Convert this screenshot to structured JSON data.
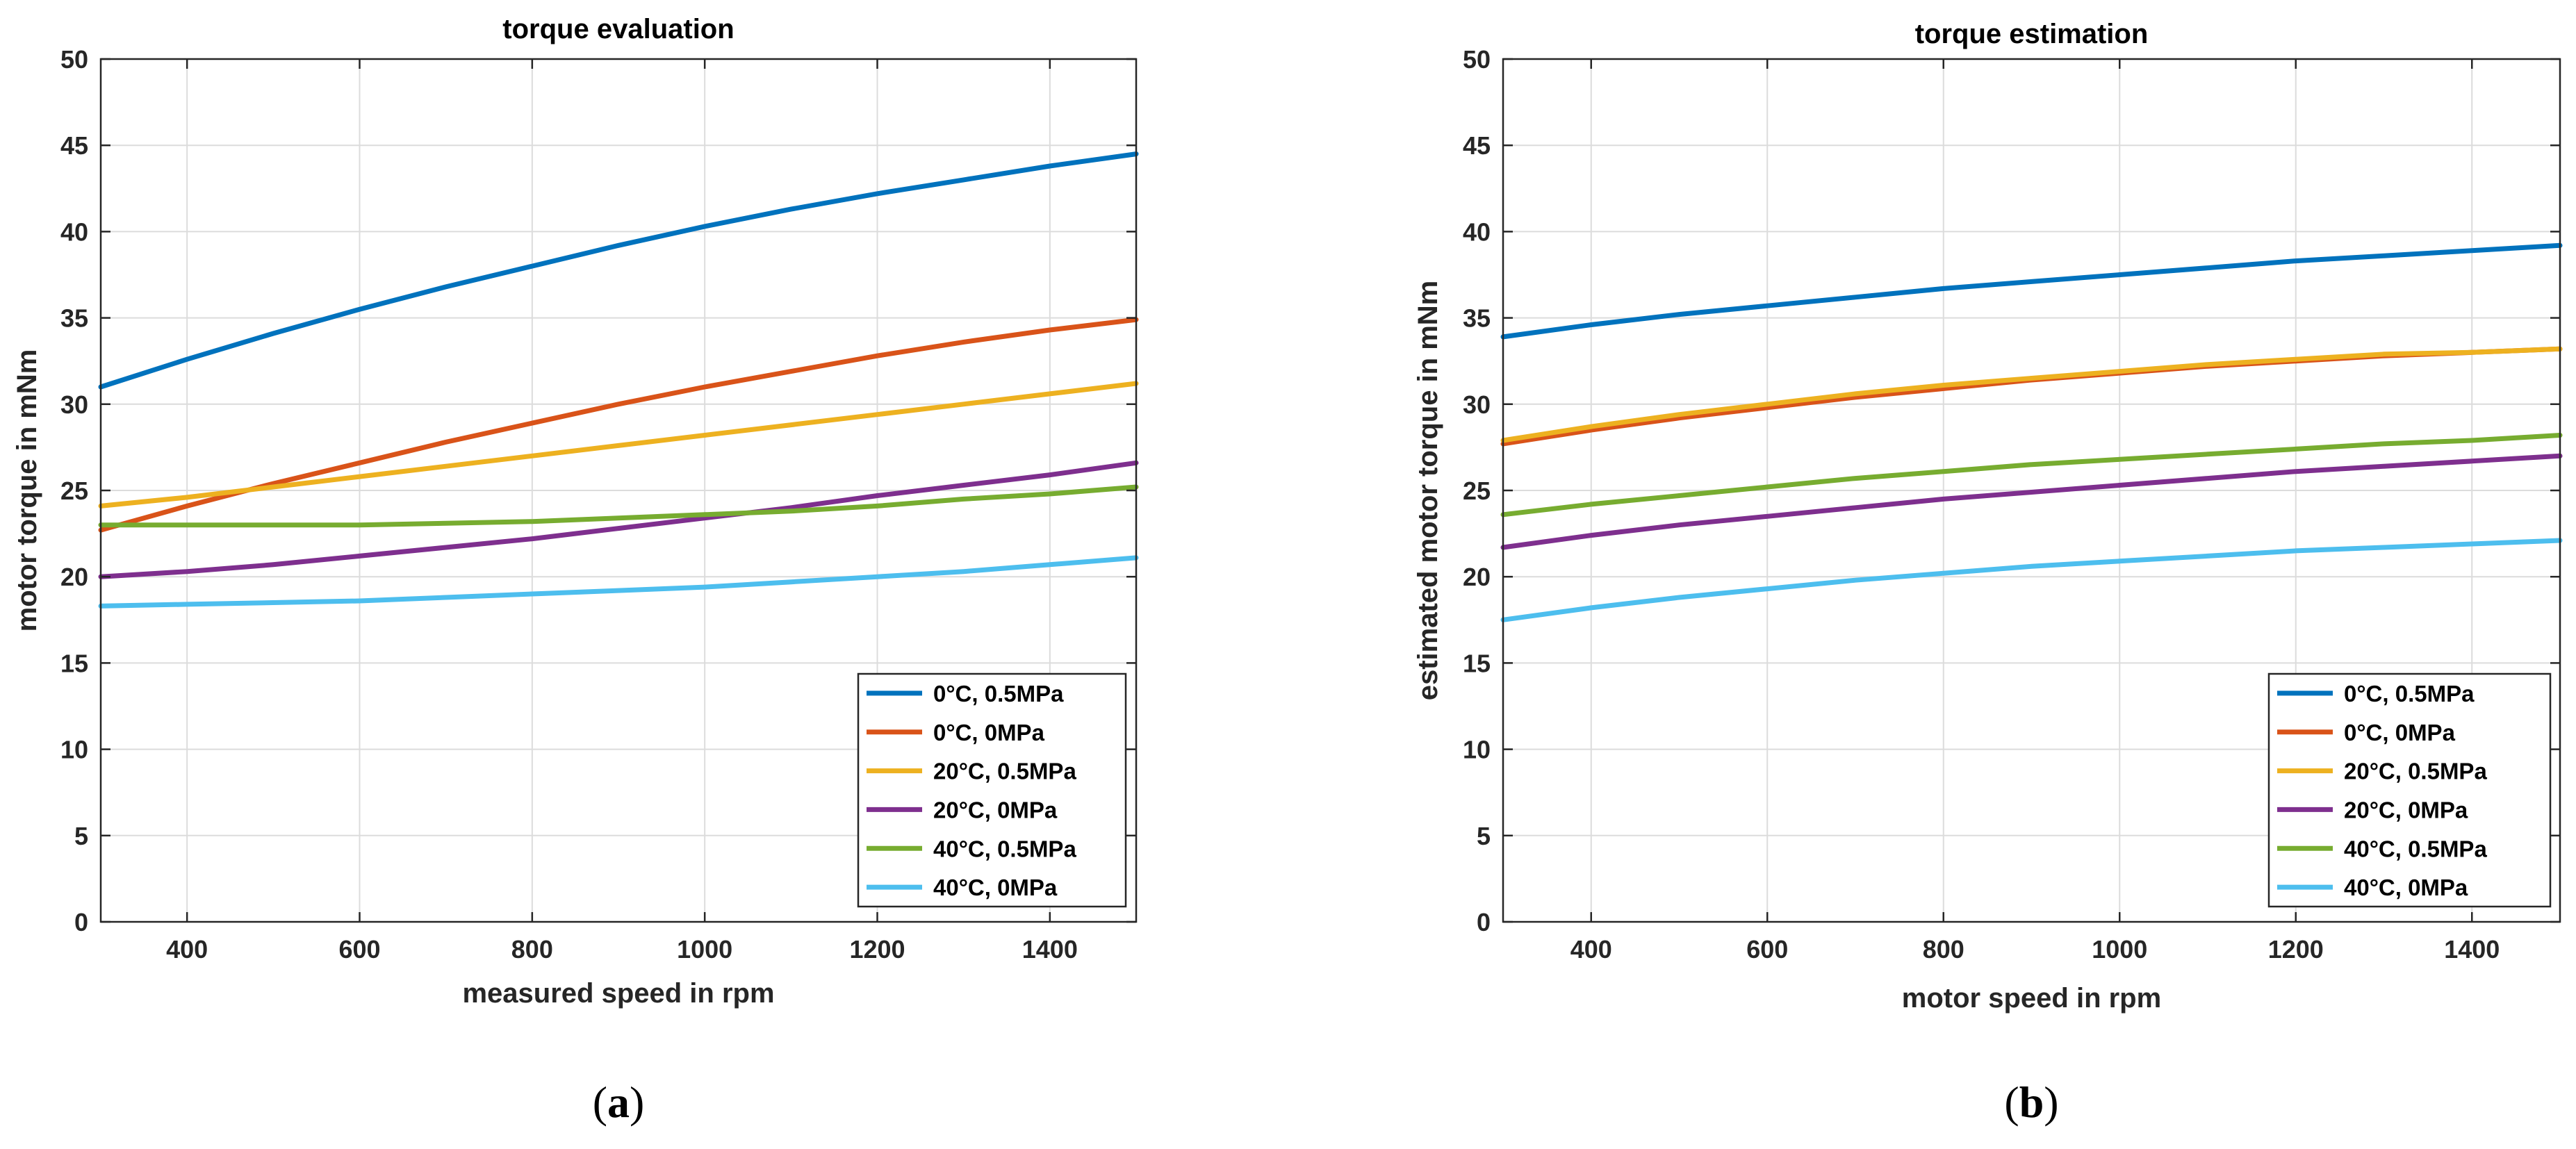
{
  "chart_data": [
    {
      "type": "line",
      "panel_label": "a",
      "title": "torque evaluation",
      "xlabel": "measured speed in rpm",
      "ylabel": "motor torque in mNm",
      "xlim": [
        300,
        1500
      ],
      "ylim": [
        0,
        50
      ],
      "xticks": [
        400,
        600,
        800,
        1000,
        1200,
        1400
      ],
      "yticks": [
        0,
        5,
        10,
        15,
        20,
        25,
        30,
        35,
        40,
        45,
        50
      ],
      "grid": true,
      "legend_location": "bottom-right",
      "series": [
        {
          "name": "0°C, 0.5MPa",
          "color": "#0072BD",
          "x": [
            300,
            400,
            500,
            600,
            700,
            800,
            900,
            1000,
            1100,
            1200,
            1300,
            1400,
            1500
          ],
          "y": [
            31.0,
            32.6,
            34.1,
            35.5,
            36.8,
            38.0,
            39.2,
            40.3,
            41.3,
            42.2,
            43.0,
            43.8,
            44.5
          ]
        },
        {
          "name": "0°C, 0MPa",
          "color": "#D95319",
          "x": [
            300,
            400,
            500,
            600,
            700,
            800,
            900,
            1000,
            1100,
            1200,
            1300,
            1400,
            1500
          ],
          "y": [
            22.7,
            24.1,
            25.4,
            26.6,
            27.8,
            28.9,
            30.0,
            31.0,
            31.9,
            32.8,
            33.6,
            34.3,
            34.9
          ]
        },
        {
          "name": "20°C, 0.5MPa",
          "color": "#EDB120",
          "x": [
            300,
            400,
            500,
            600,
            700,
            800,
            900,
            1000,
            1100,
            1200,
            1300,
            1400,
            1500
          ],
          "y": [
            24.1,
            24.6,
            25.2,
            25.8,
            26.4,
            27.0,
            27.6,
            28.2,
            28.8,
            29.4,
            30.0,
            30.6,
            31.2
          ]
        },
        {
          "name": "20°C, 0MPa",
          "color": "#7E2F8E",
          "x": [
            300,
            400,
            500,
            600,
            700,
            800,
            900,
            1000,
            1100,
            1200,
            1300,
            1400,
            1500
          ],
          "y": [
            20.0,
            20.3,
            20.7,
            21.2,
            21.7,
            22.2,
            22.8,
            23.4,
            24.0,
            24.7,
            25.3,
            25.9,
            26.6
          ]
        },
        {
          "name": "40°C, 0.5MPa",
          "color": "#77AC30",
          "x": [
            300,
            400,
            500,
            600,
            700,
            800,
            900,
            1000,
            1100,
            1200,
            1300,
            1400,
            1500
          ],
          "y": [
            23.0,
            23.0,
            23.0,
            23.0,
            23.1,
            23.2,
            23.4,
            23.6,
            23.8,
            24.1,
            24.5,
            24.8,
            25.2
          ]
        },
        {
          "name": "40°C, 0MPa",
          "color": "#4DBEEE",
          "x": [
            300,
            400,
            500,
            600,
            700,
            800,
            900,
            1000,
            1100,
            1200,
            1300,
            1400,
            1500
          ],
          "y": [
            18.3,
            18.4,
            18.5,
            18.6,
            18.8,
            19.0,
            19.2,
            19.4,
            19.7,
            20.0,
            20.3,
            20.7,
            21.1
          ]
        }
      ]
    },
    {
      "type": "line",
      "panel_label": "b",
      "title": "torque estimation",
      "xlabel": "motor speed in rpm",
      "ylabel": "estimated motor torque in mNm",
      "xlim": [
        300,
        1500
      ],
      "ylim": [
        0,
        50
      ],
      "xticks": [
        400,
        600,
        800,
        1000,
        1200,
        1400
      ],
      "yticks": [
        0,
        5,
        10,
        15,
        20,
        25,
        30,
        35,
        40,
        45,
        50
      ],
      "grid": true,
      "legend_location": "bottom-right",
      "series": [
        {
          "name": "0°C, 0.5MPa",
          "color": "#0072BD",
          "x": [
            300,
            400,
            500,
            600,
            700,
            800,
            900,
            1000,
            1100,
            1200,
            1300,
            1400,
            1500
          ],
          "y": [
            33.9,
            34.6,
            35.2,
            35.7,
            36.2,
            36.7,
            37.1,
            37.5,
            37.9,
            38.3,
            38.6,
            38.9,
            39.2
          ]
        },
        {
          "name": "0°C, 0MPa",
          "color": "#D95319",
          "x": [
            300,
            400,
            500,
            600,
            700,
            800,
            900,
            1000,
            1100,
            1200,
            1300,
            1400,
            1500
          ],
          "y": [
            27.7,
            28.5,
            29.2,
            29.8,
            30.4,
            30.9,
            31.4,
            31.8,
            32.2,
            32.5,
            32.8,
            33.0,
            33.2
          ]
        },
        {
          "name": "20°C, 0.5MPa",
          "color": "#EDB120",
          "x": [
            300,
            400,
            500,
            600,
            700,
            800,
            900,
            1000,
            1100,
            1200,
            1300,
            1400,
            1500
          ],
          "y": [
            27.9,
            28.7,
            29.4,
            30.0,
            30.6,
            31.1,
            31.5,
            31.9,
            32.3,
            32.6,
            32.9,
            33.0,
            33.2
          ]
        },
        {
          "name": "20°C, 0MPa",
          "color": "#7E2F8E",
          "x": [
            300,
            400,
            500,
            600,
            700,
            800,
            900,
            1000,
            1100,
            1200,
            1300,
            1400,
            1500
          ],
          "y": [
            21.7,
            22.4,
            23.0,
            23.5,
            24.0,
            24.5,
            24.9,
            25.3,
            25.7,
            26.1,
            26.4,
            26.7,
            27.0
          ]
        },
        {
          "name": "40°C, 0.5MPa",
          "color": "#77AC30",
          "x": [
            300,
            400,
            500,
            600,
            700,
            800,
            900,
            1000,
            1100,
            1200,
            1300,
            1400,
            1500
          ],
          "y": [
            23.6,
            24.2,
            24.7,
            25.2,
            25.7,
            26.1,
            26.5,
            26.8,
            27.1,
            27.4,
            27.7,
            27.9,
            28.2
          ]
        },
        {
          "name": "40°C, 0MPa",
          "color": "#4DBEEE",
          "x": [
            300,
            400,
            500,
            600,
            700,
            800,
            900,
            1000,
            1100,
            1200,
            1300,
            1400,
            1500
          ],
          "y": [
            17.5,
            18.2,
            18.8,
            19.3,
            19.8,
            20.2,
            20.6,
            20.9,
            21.2,
            21.5,
            21.7,
            21.9,
            22.1
          ]
        }
      ]
    }
  ]
}
